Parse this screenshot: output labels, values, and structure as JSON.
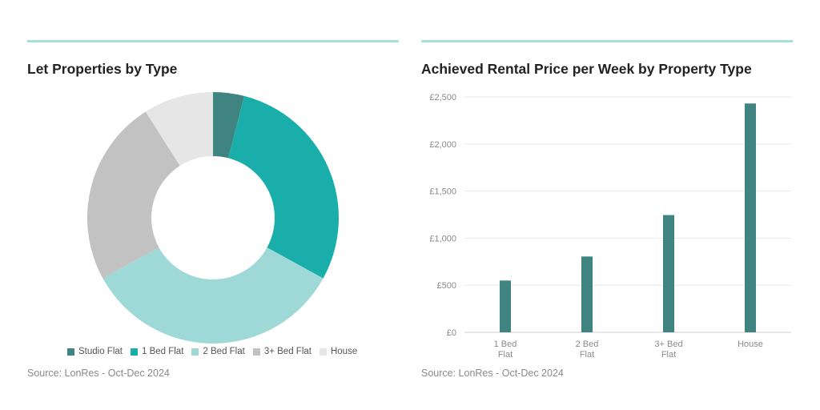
{
  "colors": {
    "rule": "#a8dede",
    "grid": "#e8e8e8",
    "axis": "#cfcfcf",
    "bar": "#3f8481"
  },
  "left": {
    "title": "Let Properties by Type",
    "source": "Source: LonRes - Oct-Dec 2024"
  },
  "right": {
    "title": "Achieved Rental Price per Week by Property Type",
    "source": "Source: LonRes - Oct-Dec 2024"
  },
  "chart_data": [
    {
      "type": "pie",
      "title": "Let Properties by Type",
      "donut": true,
      "legend_position": "bottom",
      "slices": [
        {
          "label": "Studio Flat",
          "value": 4,
          "color": "#3f8481"
        },
        {
          "label": "1 Bed Flat",
          "value": 29,
          "color": "#1aaeaa"
        },
        {
          "label": "2 Bed Flat",
          "value": 34,
          "color": "#9ed9d8"
        },
        {
          "label": "3+ Bed Flat",
          "value": 24,
          "color": "#c2c2c2"
        },
        {
          "label": "House",
          "value": 9,
          "color": "#e6e6e6"
        }
      ]
    },
    {
      "type": "bar",
      "title": "Achieved Rental Price per Week by Property Type",
      "categories": [
        "1 Bed Flat",
        "2 Bed Flat",
        "3+ Bed Flat",
        "House"
      ],
      "values": [
        550,
        805,
        1245,
        2430
      ],
      "ylim": [
        0,
        2500
      ],
      "yticks": [
        0,
        500,
        1000,
        1500,
        2000,
        2500
      ],
      "ytick_labels": [
        "£0",
        "£500",
        "£1,000",
        "£1,500",
        "£2,000",
        "£2,500"
      ],
      "grid": true
    }
  ]
}
